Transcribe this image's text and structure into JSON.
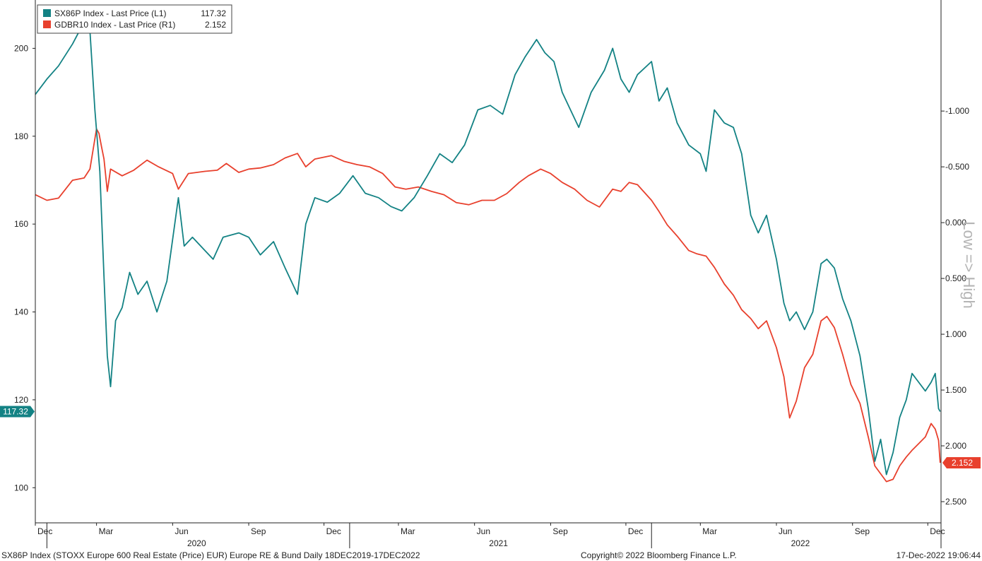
{
  "chart_data": {
    "type": "line",
    "legend_position": "top-left",
    "grid": false,
    "series": [
      {
        "name": "SX86P Index - Last Price (L1)",
        "last_value_label": "117.32",
        "axis": "left",
        "color": "#138284",
        "values": [
          [
            "2019-12-18",
            189.5
          ],
          [
            "2020-01-01",
            193
          ],
          [
            "2020-01-15",
            196
          ],
          [
            "2020-02-01",
            201
          ],
          [
            "2020-02-15",
            206
          ],
          [
            "2020-02-22",
            204
          ],
          [
            "2020-02-28",
            186
          ],
          [
            "2020-03-05",
            172
          ],
          [
            "2020-03-10",
            148
          ],
          [
            "2020-03-14",
            130
          ],
          [
            "2020-03-18",
            123
          ],
          [
            "2020-03-24",
            138
          ],
          [
            "2020-04-01",
            141
          ],
          [
            "2020-04-10",
            149
          ],
          [
            "2020-04-20",
            144
          ],
          [
            "2020-05-01",
            147
          ],
          [
            "2020-05-13",
            140
          ],
          [
            "2020-05-25",
            147
          ],
          [
            "2020-06-08",
            166
          ],
          [
            "2020-06-15",
            155
          ],
          [
            "2020-06-25",
            157
          ],
          [
            "2020-07-10",
            154
          ],
          [
            "2020-07-20",
            152
          ],
          [
            "2020-08-01",
            157
          ],
          [
            "2020-08-20",
            158
          ],
          [
            "2020-09-01",
            157
          ],
          [
            "2020-09-15",
            153
          ],
          [
            "2020-10-01",
            156
          ],
          [
            "2020-10-15",
            150
          ],
          [
            "2020-10-30",
            144
          ],
          [
            "2020-11-09",
            160
          ],
          [
            "2020-11-20",
            166
          ],
          [
            "2020-12-05",
            165
          ],
          [
            "2020-12-20",
            167
          ],
          [
            "2021-01-05",
            171
          ],
          [
            "2021-01-20",
            167
          ],
          [
            "2021-02-05",
            166
          ],
          [
            "2021-02-20",
            164
          ],
          [
            "2021-03-05",
            163
          ],
          [
            "2021-03-20",
            166
          ],
          [
            "2021-04-05",
            171
          ],
          [
            "2021-04-20",
            176
          ],
          [
            "2021-05-05",
            174
          ],
          [
            "2021-05-20",
            178
          ],
          [
            "2021-06-05",
            186
          ],
          [
            "2021-06-20",
            187
          ],
          [
            "2021-07-05",
            185
          ],
          [
            "2021-07-20",
            194
          ],
          [
            "2021-08-01",
            198
          ],
          [
            "2021-08-15",
            202
          ],
          [
            "2021-08-25",
            199
          ],
          [
            "2021-09-05",
            197
          ],
          [
            "2021-09-15",
            190
          ],
          [
            "2021-09-25",
            186
          ],
          [
            "2021-10-05",
            182
          ],
          [
            "2021-10-20",
            190
          ],
          [
            "2021-11-05",
            195
          ],
          [
            "2021-11-15",
            200
          ],
          [
            "2021-11-25",
            193
          ],
          [
            "2021-12-05",
            190
          ],
          [
            "2021-12-15",
            194
          ],
          [
            "2022-01-01",
            197
          ],
          [
            "2022-01-10",
            188
          ],
          [
            "2022-01-20",
            191
          ],
          [
            "2022-02-01",
            183
          ],
          [
            "2022-02-15",
            178
          ],
          [
            "2022-03-01",
            176
          ],
          [
            "2022-03-08",
            172
          ],
          [
            "2022-03-18",
            186
          ],
          [
            "2022-03-30",
            183
          ],
          [
            "2022-04-10",
            182
          ],
          [
            "2022-04-20",
            176
          ],
          [
            "2022-05-01",
            162
          ],
          [
            "2022-05-10",
            158
          ],
          [
            "2022-05-20",
            162
          ],
          [
            "2022-06-01",
            152
          ],
          [
            "2022-06-10",
            142
          ],
          [
            "2022-06-17",
            138
          ],
          [
            "2022-06-25",
            140
          ],
          [
            "2022-07-05",
            136
          ],
          [
            "2022-07-15",
            140
          ],
          [
            "2022-07-25",
            151
          ],
          [
            "2022-08-01",
            152
          ],
          [
            "2022-08-10",
            150
          ],
          [
            "2022-08-20",
            143
          ],
          [
            "2022-08-30",
            138
          ],
          [
            "2022-09-10",
            130
          ],
          [
            "2022-09-20",
            118
          ],
          [
            "2022-09-28",
            106
          ],
          [
            "2022-10-05",
            111
          ],
          [
            "2022-10-12",
            103
          ],
          [
            "2022-10-20",
            108
          ],
          [
            "2022-10-28",
            116
          ],
          [
            "2022-11-05",
            120
          ],
          [
            "2022-11-12",
            126
          ],
          [
            "2022-11-20",
            124
          ],
          [
            "2022-11-28",
            122
          ],
          [
            "2022-12-05",
            124
          ],
          [
            "2022-12-10",
            126
          ],
          [
            "2022-12-14",
            118
          ],
          [
            "2022-12-16",
            117.32
          ]
        ]
      },
      {
        "name": "GDBR10 Index - Last Price (R1)",
        "last_value_label": "2.152",
        "axis": "right",
        "color": "#e8402d",
        "values": [
          [
            "2019-12-18",
            -0.25
          ],
          [
            "2020-01-01",
            -0.2
          ],
          [
            "2020-01-15",
            -0.22
          ],
          [
            "2020-02-01",
            -0.38
          ],
          [
            "2020-02-15",
            -0.4
          ],
          [
            "2020-02-22",
            -0.48
          ],
          [
            "2020-03-01",
            -0.84
          ],
          [
            "2020-03-04",
            -0.8
          ],
          [
            "2020-03-07",
            -0.68
          ],
          [
            "2020-03-10",
            -0.57
          ],
          [
            "2020-03-14",
            -0.28
          ],
          [
            "2020-03-18",
            -0.48
          ],
          [
            "2020-04-01",
            -0.42
          ],
          [
            "2020-04-15",
            -0.47
          ],
          [
            "2020-05-01",
            -0.56
          ],
          [
            "2020-05-15",
            -0.5
          ],
          [
            "2020-06-01",
            -0.44
          ],
          [
            "2020-06-08",
            -0.3
          ],
          [
            "2020-06-20",
            -0.44
          ],
          [
            "2020-07-10",
            -0.46
          ],
          [
            "2020-07-25",
            -0.47
          ],
          [
            "2020-08-05",
            -0.53
          ],
          [
            "2020-08-20",
            -0.45
          ],
          [
            "2020-09-01",
            -0.48
          ],
          [
            "2020-09-15",
            -0.49
          ],
          [
            "2020-10-01",
            -0.52
          ],
          [
            "2020-10-15",
            -0.58
          ],
          [
            "2020-10-30",
            -0.62
          ],
          [
            "2020-11-09",
            -0.5
          ],
          [
            "2020-11-20",
            -0.57
          ],
          [
            "2020-12-10",
            -0.6
          ],
          [
            "2020-12-25",
            -0.55
          ],
          [
            "2021-01-10",
            -0.52
          ],
          [
            "2021-01-25",
            -0.5
          ],
          [
            "2021-02-10",
            -0.44
          ],
          [
            "2021-02-25",
            -0.32
          ],
          [
            "2021-03-10",
            -0.3
          ],
          [
            "2021-03-25",
            -0.32
          ],
          [
            "2021-04-10",
            -0.28
          ],
          [
            "2021-04-25",
            -0.25
          ],
          [
            "2021-05-10",
            -0.18
          ],
          [
            "2021-05-25",
            -0.16
          ],
          [
            "2021-06-10",
            -0.2
          ],
          [
            "2021-06-25",
            -0.2
          ],
          [
            "2021-07-10",
            -0.26
          ],
          [
            "2021-07-25",
            -0.36
          ],
          [
            "2021-08-05",
            -0.42
          ],
          [
            "2021-08-20",
            -0.48
          ],
          [
            "2021-09-01",
            -0.44
          ],
          [
            "2021-09-15",
            -0.36
          ],
          [
            "2021-09-30",
            -0.3
          ],
          [
            "2021-10-15",
            -0.2
          ],
          [
            "2021-10-30",
            -0.14
          ],
          [
            "2021-11-15",
            -0.3
          ],
          [
            "2021-11-25",
            -0.28
          ],
          [
            "2021-12-05",
            -0.36
          ],
          [
            "2021-12-15",
            -0.34
          ],
          [
            "2022-01-01",
            -0.2
          ],
          [
            "2022-01-10",
            -0.1
          ],
          [
            "2022-01-20",
            0.02
          ],
          [
            "2022-02-01",
            0.12
          ],
          [
            "2022-02-15",
            0.25
          ],
          [
            "2022-02-25",
            0.28
          ],
          [
            "2022-03-08",
            0.3
          ],
          [
            "2022-03-18",
            0.4
          ],
          [
            "2022-03-30",
            0.55
          ],
          [
            "2022-04-10",
            0.65
          ],
          [
            "2022-04-20",
            0.78
          ],
          [
            "2022-05-01",
            0.86
          ],
          [
            "2022-05-10",
            0.95
          ],
          [
            "2022-05-20",
            0.88
          ],
          [
            "2022-06-01",
            1.12
          ],
          [
            "2022-06-10",
            1.38
          ],
          [
            "2022-06-17",
            1.75
          ],
          [
            "2022-06-25",
            1.6
          ],
          [
            "2022-07-05",
            1.3
          ],
          [
            "2022-07-15",
            1.18
          ],
          [
            "2022-07-25",
            0.88
          ],
          [
            "2022-08-01",
            0.84
          ],
          [
            "2022-08-10",
            0.94
          ],
          [
            "2022-08-20",
            1.18
          ],
          [
            "2022-08-30",
            1.45
          ],
          [
            "2022-09-10",
            1.62
          ],
          [
            "2022-09-20",
            1.92
          ],
          [
            "2022-09-28",
            2.18
          ],
          [
            "2022-10-05",
            2.25
          ],
          [
            "2022-10-12",
            2.32
          ],
          [
            "2022-10-20",
            2.3
          ],
          [
            "2022-10-28",
            2.18
          ],
          [
            "2022-11-05",
            2.1
          ],
          [
            "2022-11-12",
            2.04
          ],
          [
            "2022-11-20",
            1.98
          ],
          [
            "2022-11-28",
            1.92
          ],
          [
            "2022-12-05",
            1.8
          ],
          [
            "2022-12-10",
            1.85
          ],
          [
            "2022-12-14",
            1.95
          ],
          [
            "2022-12-16",
            2.152
          ]
        ]
      }
    ],
    "x_axis": {
      "range": [
        "2019-12-18",
        "2022-12-17"
      ],
      "month_ticks": [
        {
          "label": "Dec",
          "date": "2019-12-15"
        },
        {
          "label": "Mar",
          "date": "2020-03-01"
        },
        {
          "label": "Jun",
          "date": "2020-06-01"
        },
        {
          "label": "Sep",
          "date": "2020-09-01"
        },
        {
          "label": "Dec",
          "date": "2020-12-01"
        },
        {
          "label": "Mar",
          "date": "2021-03-01"
        },
        {
          "label": "Jun",
          "date": "2021-06-01"
        },
        {
          "label": "Sep",
          "date": "2021-09-01"
        },
        {
          "label": "Dec",
          "date": "2021-12-01"
        },
        {
          "label": "Mar",
          "date": "2022-03-01"
        },
        {
          "label": "Jun",
          "date": "2022-06-01"
        },
        {
          "label": "Sep",
          "date": "2022-09-01"
        },
        {
          "label": "Dec",
          "date": "2022-12-01"
        }
      ],
      "year_labels": [
        {
          "label": "2020",
          "date": "2020-06-30"
        },
        {
          "label": "2021",
          "date": "2021-06-30"
        },
        {
          "label": "2022",
          "date": "2022-06-30"
        }
      ],
      "year_boundaries": [
        "2020-01-01",
        "2021-01-01",
        "2022-01-01",
        "2023-01-01"
      ]
    },
    "y_left": {
      "ylim": [
        92,
        211
      ],
      "ticks": [
        "100",
        "120",
        "140",
        "160",
        "180",
        "200"
      ]
    },
    "y_right": {
      "ylim": [
        -1.995,
        2.69
      ],
      "inverted": true,
      "ticks": [
        "-1.000",
        "-0.500",
        "0.000",
        "0.500",
        "1.000",
        "1.500",
        "2.000",
        "2.500"
      ],
      "title": "Low => High"
    }
  },
  "footer": {
    "left": "SX86P Index (STOXX Europe 600 Real Estate (Price) EUR) Europe RE & Bund  Daily 18DEC2019-17DEC2022",
    "center": "Copyright© 2022 Bloomberg Finance L.P.",
    "right": "17-Dec-2022 19:06:44"
  }
}
